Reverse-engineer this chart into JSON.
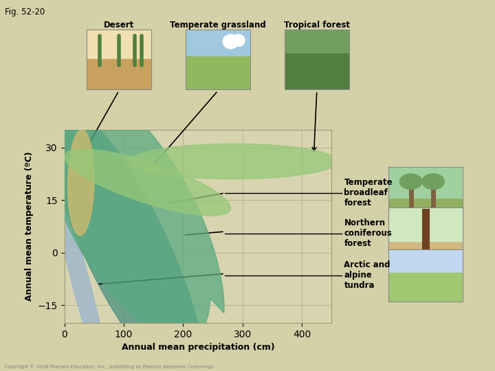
{
  "title": "Fig. 52-20",
  "xlabel": "Annual mean precipitation (cm)",
  "ylabel": "Annual mean temperature (ºC)",
  "xlim": [
    0,
    450
  ],
  "ylim": [
    -20,
    35
  ],
  "xticks": [
    0,
    100,
    200,
    300,
    400
  ],
  "yticks": [
    -15,
    0,
    15,
    30
  ],
  "fig_bg": "#d4d0a8",
  "plot_bg": "#d8d4b0",
  "biome_colors": {
    "tropical_forest": "#96c878",
    "temperate_grassland": "#96c878",
    "temperate_broadleaf": "#5aaa80",
    "northern_coniferous": "#4a9080",
    "desert": "#c8b870",
    "arctic_tundra": "#a0b8cc"
  }
}
